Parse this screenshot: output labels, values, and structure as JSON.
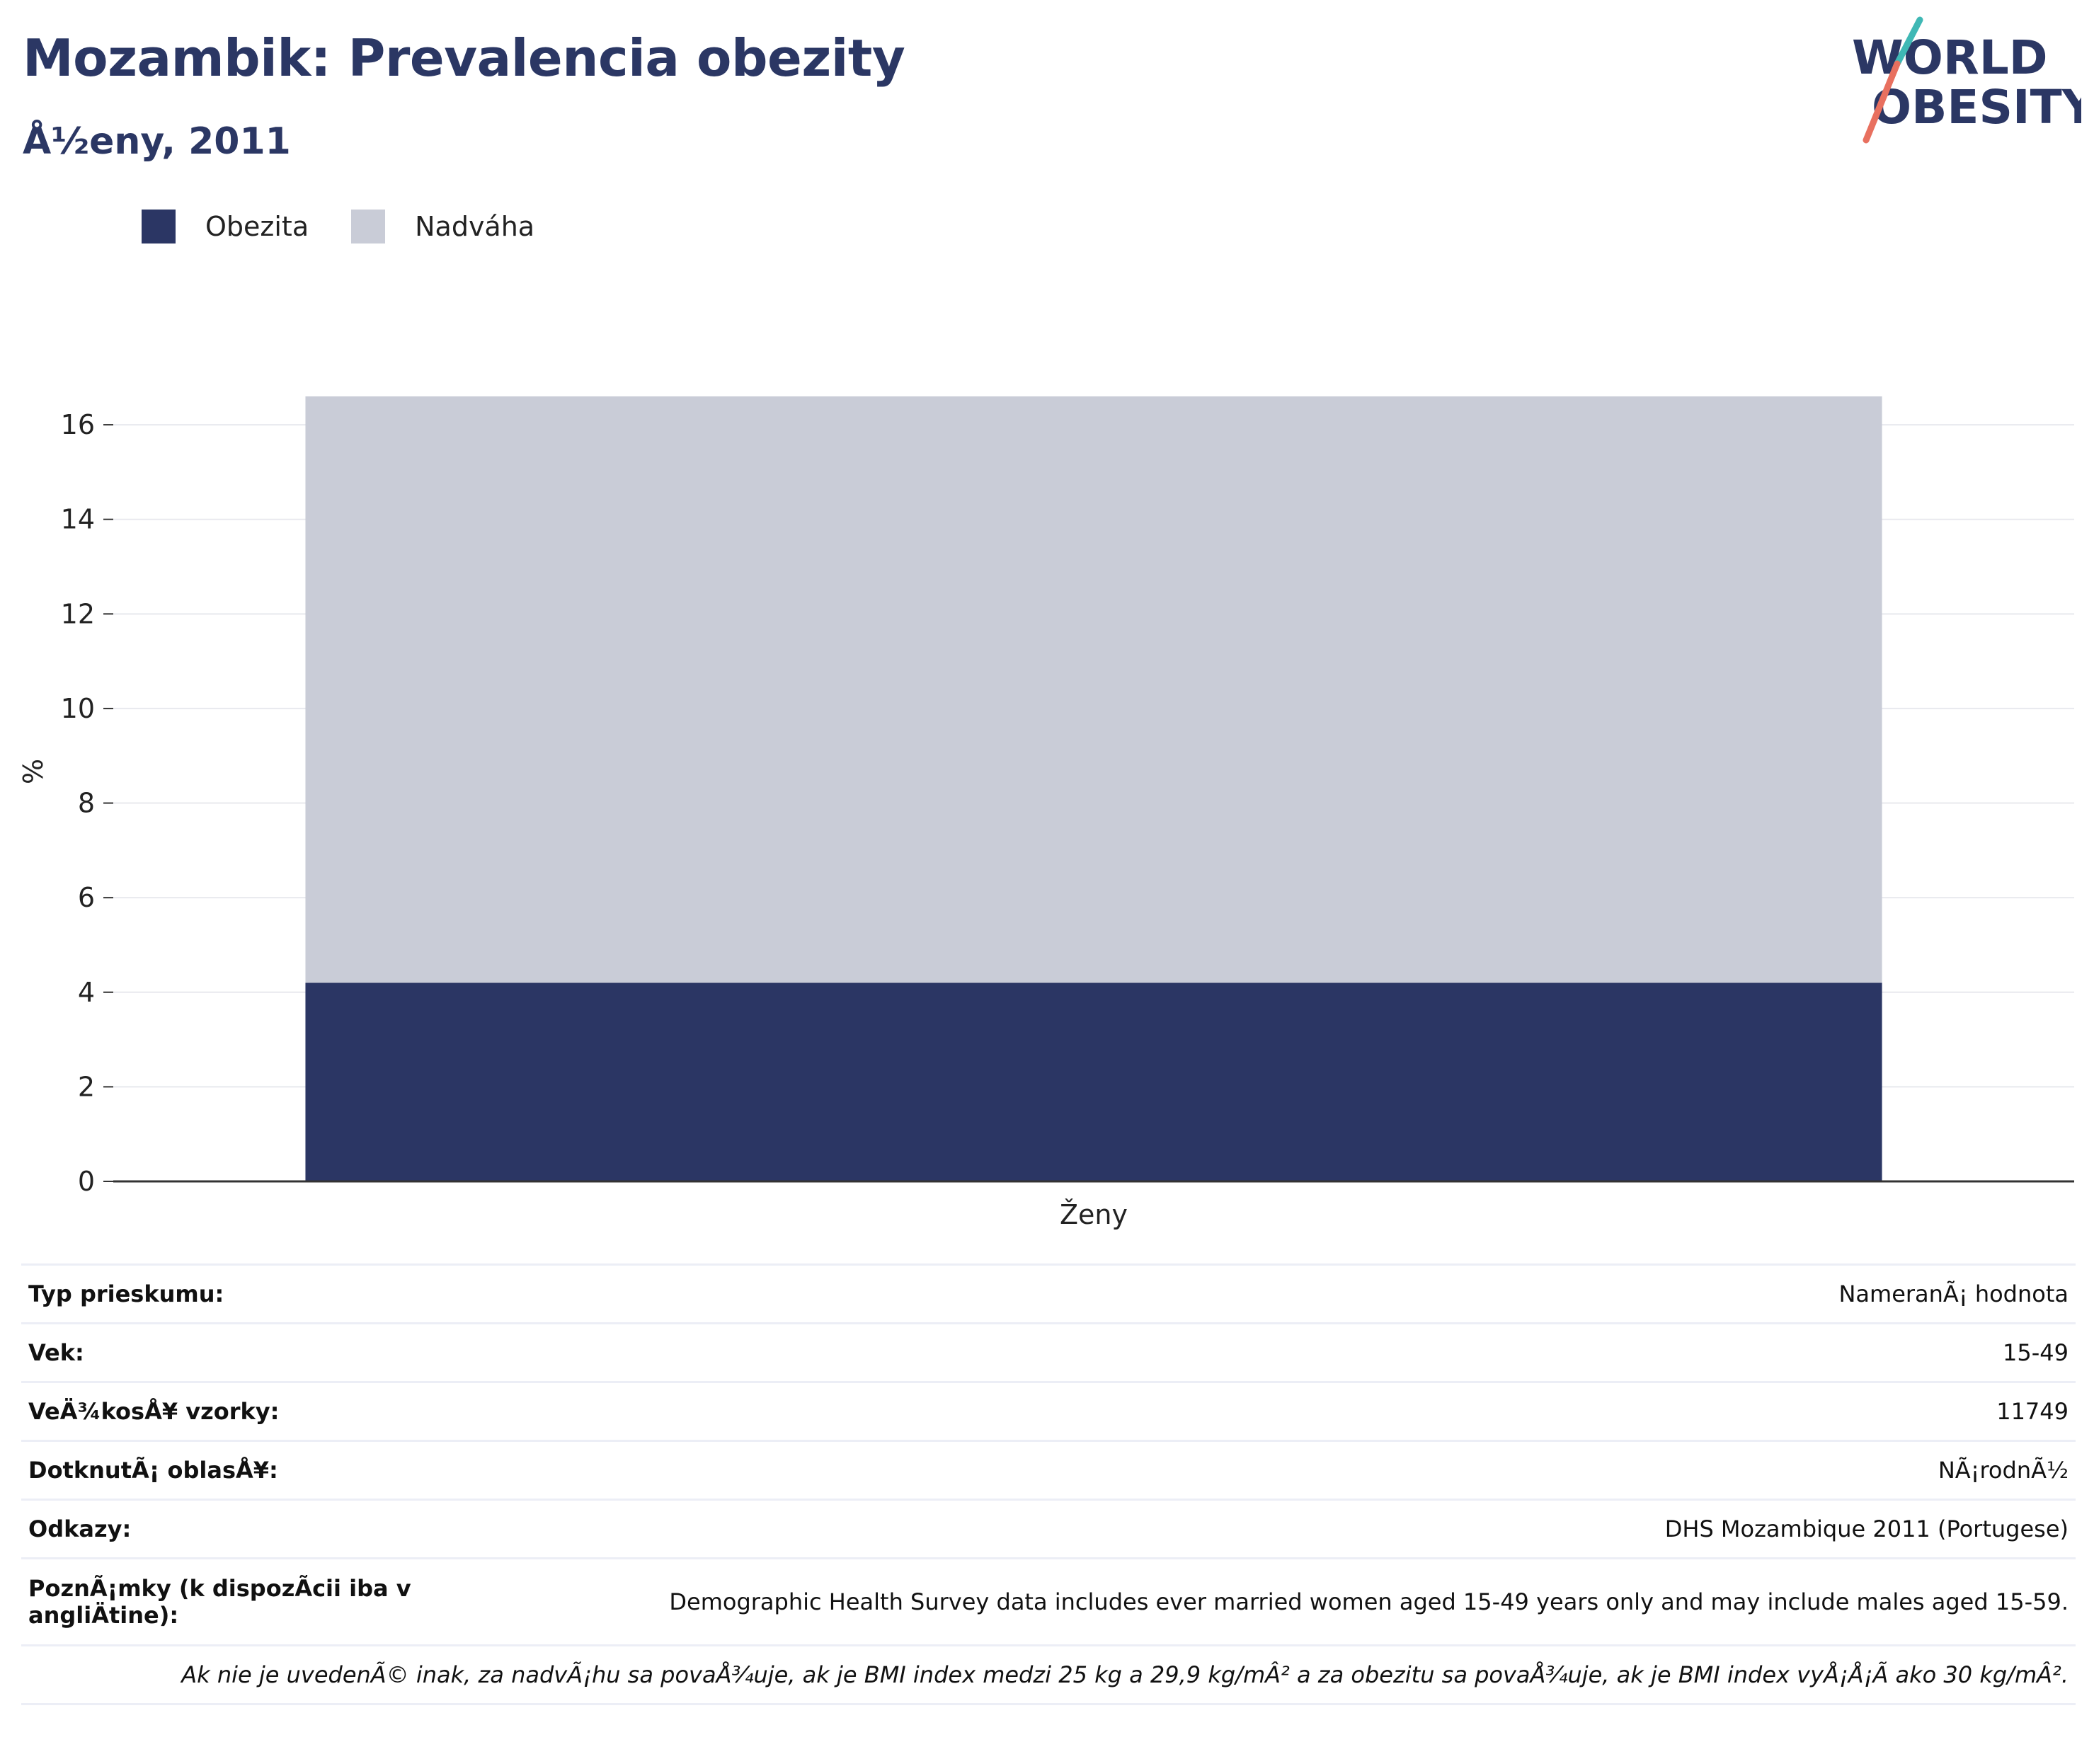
{
  "title": "Mozambik: Prevalencia obezity",
  "subtitle": "Å½eny, 2011",
  "logo": {
    "line1": "WORLD",
    "line2": "OBESITY"
  },
  "colors": {
    "obesity": "#2b3664",
    "overweight": "#c9ccd7",
    "text_dark": "#2b3764",
    "logo_slash_teal": "#3fb8b5",
    "logo_slash_red": "#e8705f"
  },
  "legend": [
    {
      "label": "Obezita",
      "color": "#2b3664"
    },
    {
      "label": "Nadváha",
      "color": "#c9ccd7"
    }
  ],
  "chart_data": {
    "type": "bar",
    "stacked": true,
    "categories": [
      "Ženy"
    ],
    "series": [
      {
        "name": "Obezita",
        "values": [
          4.2
        ]
      },
      {
        "name": "Nadváha",
        "values": [
          12.4
        ]
      }
    ],
    "ylabel": "%",
    "xlabel": "",
    "ylim": [
      0,
      16.6
    ],
    "yticks": [
      0,
      2,
      4,
      6,
      8,
      10,
      12,
      14,
      16
    ],
    "grid": true,
    "legend_position": "top-left"
  },
  "info": {
    "rows": [
      {
        "label": "Typ prieskumu:",
        "value": "NameranÃ¡ hodnota"
      },
      {
        "label": "Vek:",
        "value": "15-49"
      },
      {
        "label": "VeÄ¾kosÅ¥ vzorky:",
        "value": "11749"
      },
      {
        "label": "DotknutÃ¡ oblasÅ¥:",
        "value": "NÃ¡rodnÃ½"
      },
      {
        "label": "Odkazy:",
        "value": "DHS Mozambique 2011 (Portugese)"
      },
      {
        "label": "PoznÃ¡mky (k dispozÃ­cii iba v angliÄtine):",
        "value": "Demographic Health Survey data includes ever married women aged 15-49 years only and may include males aged 15-59."
      }
    ],
    "footnote": "Ak nie je uvedenÃ© inak, za nadvÃ¡hu sa povaÅ¾uje, ak je BMI index medzi 25 kg a 29,9 kg/mÂ² a za obezitu sa povaÅ¾uje, ak je BMI index vyÅ¡Å¡Ã­ ako 30 kg/mÂ²."
  }
}
